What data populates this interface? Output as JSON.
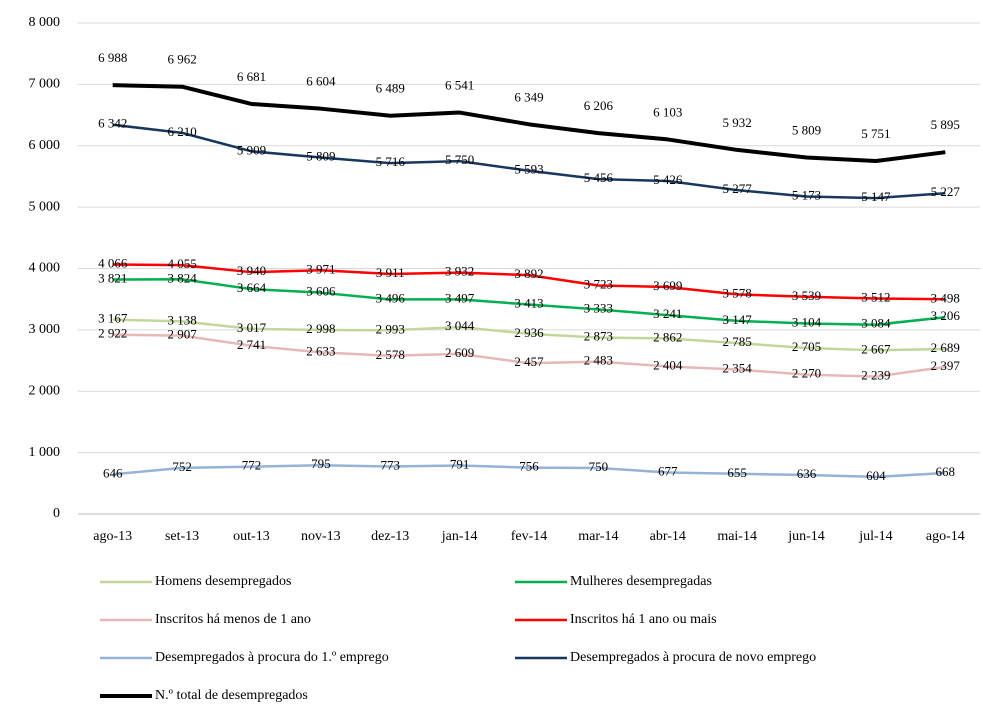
{
  "chart_data": {
    "type": "line",
    "categories": [
      "ago-13",
      "set-13",
      "out-13",
      "nov-13",
      "dez-13",
      "jan-14",
      "fev-14",
      "mar-14",
      "abr-14",
      "mai-14",
      "jun-14",
      "jul-14",
      "ago-14"
    ],
    "ylim": [
      0,
      8000
    ],
    "yticks": [
      0,
      {
        "value": 1000,
        "label": "1 000"
      },
      {
        "value": 2000,
        "label": "2 000"
      },
      {
        "value": 3000,
        "label": "3 000"
      },
      {
        "value": 4000,
        "label": "4 000"
      },
      {
        "value": 5000,
        "label": "5 000"
      },
      {
        "value": 6000,
        "label": "6 000"
      },
      {
        "value": 7000,
        "label": "7 000"
      },
      {
        "value": 8000,
        "label": "8 000"
      }
    ],
    "grid": true,
    "legend": "bottom",
    "series": [
      {
        "name": "Homens desempregados",
        "color": "#c3d69b",
        "values": [
          3167,
          3138,
          3017,
          2998,
          2993,
          3044,
          2936,
          2873,
          2862,
          2785,
          2705,
          2667,
          2689
        ],
        "value_labels": [
          "3 167",
          "3 138",
          "3 017",
          "2 998",
          "2 993",
          "3 044",
          "2 936",
          "2 873",
          "2 862",
          "2 785",
          "2 705",
          "2 667",
          "2 689"
        ]
      },
      {
        "name": "Mulheres desempregadas",
        "color": "#00b050",
        "values": [
          3821,
          3824,
          3664,
          3606,
          3496,
          3497,
          3413,
          3333,
          3241,
          3147,
          3104,
          3084,
          3206
        ],
        "value_labels": [
          "3 821",
          "3 824",
          "3 664",
          "3 606",
          "3 496",
          "3 497",
          "3 413",
          "3 333",
          "3 241",
          "3 147",
          "3 104",
          "3 084",
          "3 206"
        ]
      },
      {
        "name": "Inscritos há menos de 1 ano",
        "color": "#e6b9b8",
        "values": [
          2922,
          2907,
          2741,
          2633,
          2578,
          2609,
          2457,
          2483,
          2404,
          2354,
          2270,
          2239,
          2397
        ],
        "value_labels": [
          "2 922",
          "2 907",
          "2 741",
          "2 633",
          "2 578",
          "2 609",
          "2 457",
          "2 483",
          "2 404",
          "2 354",
          "2 270",
          "2 239",
          "2 397"
        ]
      },
      {
        "name": "Inscritos há 1 ano ou mais",
        "color": "#ff0000",
        "values": [
          4066,
          4055,
          3940,
          3971,
          3911,
          3932,
          3892,
          3723,
          3699,
          3578,
          3539,
          3512,
          3498
        ],
        "value_labels": [
          "4 066",
          "4 055",
          "3 940",
          "3 971",
          "3 911",
          "3 932",
          "3 892",
          "3 723",
          "3 699",
          "3 578",
          "3 539",
          "3 512",
          "3 498"
        ]
      },
      {
        "name": "Desempregados à procura do 1.º emprego",
        "color": "#95b3d7",
        "values": [
          646,
          752,
          772,
          795,
          773,
          791,
          756,
          750,
          677,
          655,
          636,
          604,
          668
        ]
      },
      {
        "name": "Desempregados à procura de novo emprego",
        "color": "#17375e",
        "values": [
          6342,
          6210,
          5909,
          5809,
          5716,
          5750,
          5593,
          5456,
          5426,
          5277,
          5173,
          5147,
          5227
        ],
        "value_labels": [
          "6 342",
          "6 210",
          "5 909",
          "5 809",
          "5 716",
          "5 750",
          "5 593",
          "5 456",
          "5 426",
          "5 277",
          "5 173",
          "5 147",
          "5 227"
        ]
      },
      {
        "name": "N.º total de desempregados",
        "color": "#000000",
        "values": [
          6988,
          6962,
          6681,
          6604,
          6489,
          6541,
          6349,
          6206,
          6103,
          5932,
          5809,
          5751,
          5895
        ],
        "value_labels": [
          "6 988",
          "6 962",
          "6 681",
          "6 604",
          "6 489",
          "6 541",
          "6 349",
          "6 206",
          "6 103",
          "5 932",
          "5 809",
          "5 751",
          "5 895"
        ]
      }
    ]
  }
}
